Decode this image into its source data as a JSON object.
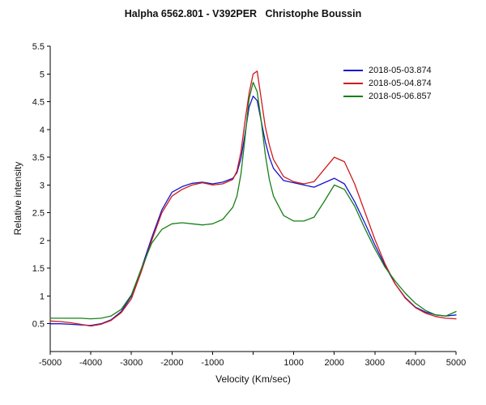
{
  "title": "Halpha 6562.801 - V392PER   Christophe Boussin",
  "chart_data": {
    "type": "line",
    "title": "Halpha 6562.801 - V392PER   Christophe Boussin",
    "xlabel": "Velocity (Km/sec)",
    "ylabel": "Relative intensity",
    "xlim": [
      -5000,
      5000
    ],
    "ylim": [
      0,
      5.5
    ],
    "grid": false,
    "legend_position": "top-right",
    "axis_color": "#000000",
    "x_ticks": [
      -5000,
      -4000,
      -3000,
      -2000,
      -1000,
      0,
      1000,
      2000,
      3000,
      4000,
      5000
    ],
    "x_tick_labels": [
      "-5000",
      "-4000",
      "-3000",
      "-2000",
      "-1000",
      "",
      "1000",
      "2000",
      "3000",
      "4000",
      "5000"
    ],
    "y_ticks": [
      0.5,
      1,
      1.5,
      2,
      2.5,
      3,
      3.5,
      4,
      4.5,
      5,
      5.5
    ],
    "y_tick_labels": [
      "0.5",
      "1",
      "1.5",
      "2",
      "2.5",
      "3",
      "3.5",
      "4",
      "4.5",
      "5",
      "5.5"
    ],
    "x": [
      -5000,
      -4750,
      -4500,
      -4250,
      -4000,
      -3750,
      -3500,
      -3250,
      -3000,
      -2750,
      -2500,
      -2250,
      -2000,
      -1750,
      -1500,
      -1250,
      -1000,
      -750,
      -500,
      -400,
      -300,
      -200,
      -100,
      0,
      100,
      200,
      300,
      400,
      500,
      750,
      1000,
      1250,
      1500,
      1750,
      2000,
      2250,
      2500,
      2750,
      3000,
      3250,
      3500,
      3750,
      4000,
      4250,
      4500,
      4750,
      5000
    ],
    "series": [
      {
        "name": "2018-05-03.874",
        "color": "#1515cc",
        "values": [
          0.5,
          0.5,
          0.49,
          0.48,
          0.47,
          0.5,
          0.57,
          0.72,
          1.0,
          1.5,
          2.05,
          2.55,
          2.87,
          2.97,
          3.03,
          3.05,
          3.02,
          3.05,
          3.12,
          3.22,
          3.48,
          3.92,
          4.4,
          4.6,
          4.52,
          4.15,
          3.78,
          3.5,
          3.3,
          3.08,
          3.04,
          3.0,
          2.96,
          3.04,
          3.12,
          3.02,
          2.7,
          2.32,
          1.92,
          1.55,
          1.22,
          0.97,
          0.8,
          0.71,
          0.66,
          0.64,
          0.66
        ]
      },
      {
        "name": "2018-05-04.874",
        "color": "#d01a1a",
        "values": [
          0.55,
          0.54,
          0.52,
          0.49,
          0.46,
          0.49,
          0.56,
          0.7,
          0.95,
          1.45,
          2.0,
          2.5,
          2.8,
          2.92,
          3.0,
          3.04,
          3.0,
          3.02,
          3.1,
          3.25,
          3.6,
          4.15,
          4.65,
          5.0,
          5.05,
          4.55,
          4.05,
          3.72,
          3.46,
          3.15,
          3.06,
          3.02,
          3.06,
          3.28,
          3.5,
          3.42,
          3.02,
          2.52,
          2.02,
          1.58,
          1.22,
          0.96,
          0.79,
          0.69,
          0.63,
          0.6,
          0.59
        ]
      },
      {
        "name": "2018-05-06.857",
        "color": "#168016",
        "values": [
          0.6,
          0.6,
          0.6,
          0.6,
          0.59,
          0.6,
          0.64,
          0.76,
          1.02,
          1.5,
          1.95,
          2.2,
          2.3,
          2.32,
          2.3,
          2.28,
          2.3,
          2.38,
          2.6,
          2.8,
          3.2,
          3.85,
          4.55,
          4.85,
          4.68,
          4.15,
          3.55,
          3.1,
          2.8,
          2.45,
          2.35,
          2.35,
          2.42,
          2.7,
          3.0,
          2.92,
          2.62,
          2.22,
          1.85,
          1.52,
          1.27,
          1.05,
          0.87,
          0.74,
          0.66,
          0.64,
          0.72
        ]
      }
    ]
  }
}
